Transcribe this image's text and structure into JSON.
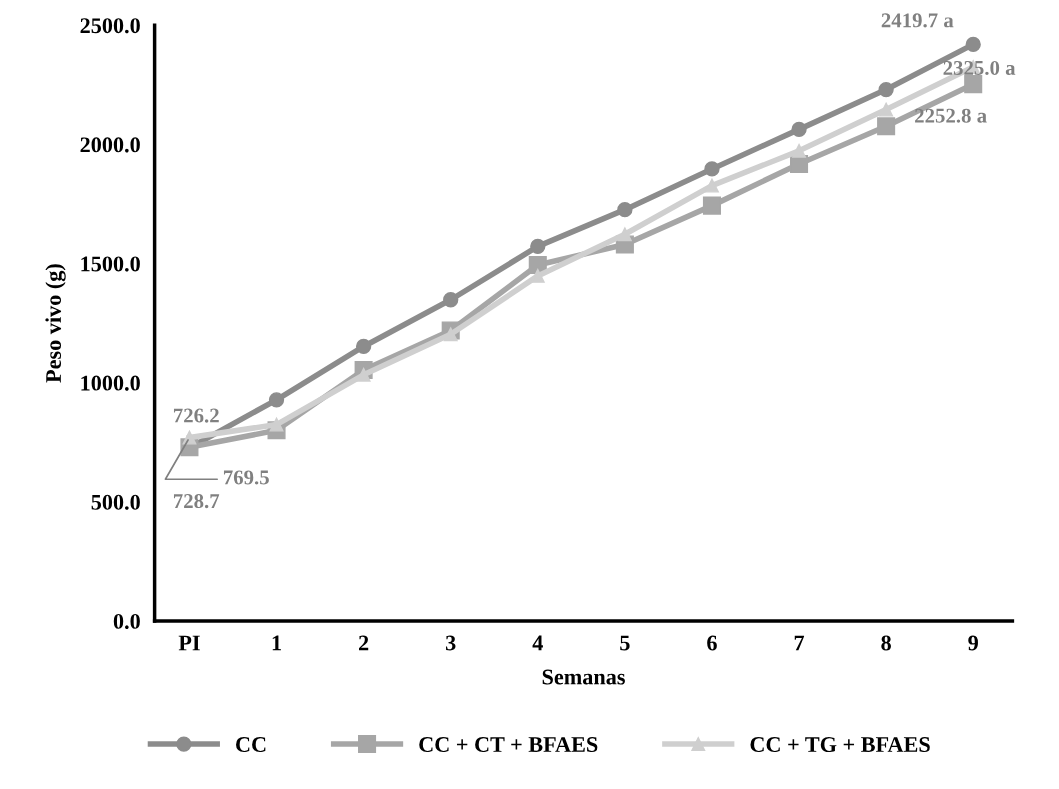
{
  "chart_data": {
    "type": "line",
    "xlabel": "Semanas",
    "ylabel": "Peso vivo (g)",
    "categories": [
      "PI",
      "1",
      "2",
      "3",
      "4",
      "5",
      "6",
      "7",
      "8",
      "9"
    ],
    "series": [
      {
        "name": "CC",
        "color": "#8c8c8c",
        "marker": "circle",
        "values": [
          726.2,
          928,
          1152,
          1348,
          1572,
          1726,
          1897,
          2063,
          2230,
          2419.7
        ],
        "value_labels": [
          "726.2",
          null,
          null,
          null,
          null,
          null,
          null,
          null,
          null,
          "2419.7 a"
        ]
      },
      {
        "name": "CC + CT + BFAES",
        "color": "#a6a6a6",
        "marker": "square",
        "values": [
          728.7,
          800,
          1053,
          1219,
          1494,
          1580,
          1743,
          1918,
          2076,
          2252.8
        ],
        "value_labels": [
          "728.7",
          null,
          null,
          null,
          null,
          null,
          null,
          null,
          null,
          "2252.8 a"
        ]
      },
      {
        "name": "CC + TG + BFAES",
        "color": "#cfcfcf",
        "marker": "triangle",
        "values": [
          769.5,
          824,
          1033,
          1203,
          1448,
          1623,
          1827,
          1973,
          2146,
          2325.0
        ],
        "value_labels": [
          "769.5",
          null,
          null,
          null,
          null,
          null,
          null,
          null,
          null,
          "2325.0 a"
        ]
      }
    ],
    "ylim": [
      0,
      2500
    ],
    "yticks": [
      {
        "value": 0,
        "label": "0.0"
      },
      {
        "value": 500,
        "label": "500.0"
      },
      {
        "value": 1000,
        "label": "1000.0"
      },
      {
        "value": 1500,
        "label": "1500.0"
      },
      {
        "value": 2000,
        "label": "2000.0"
      },
      {
        "value": 2500,
        "label": "2500.0"
      }
    ],
    "grid": false,
    "legend": "bottom",
    "line_style": "solid"
  }
}
